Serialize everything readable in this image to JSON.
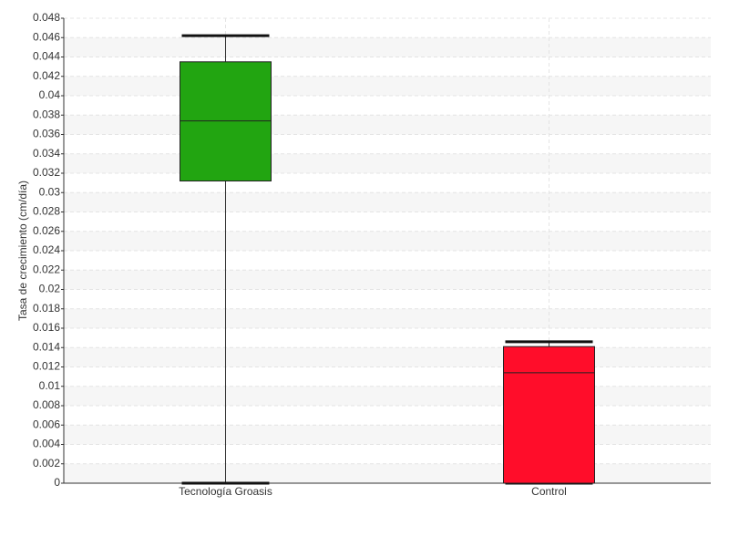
{
  "chart_data": {
    "type": "box",
    "y_label": "Tasa de crecimiento (cm/día)",
    "categories": [
      "Tecnología Groasis",
      "Control"
    ],
    "boxes": [
      {
        "min": 0,
        "q1": 0.0312,
        "median": 0.0374,
        "q3": 0.0435,
        "max": 0.0462,
        "color": "#22a511"
      },
      {
        "min": 0,
        "q1": 0,
        "median": 0.0114,
        "q3": 0.0141,
        "max": 0.0146,
        "color": "#ff0d2a"
      }
    ],
    "ylim": [
      0,
      0.048
    ],
    "yticks": [
      0,
      0.002,
      0.004,
      0.006,
      0.008,
      0.01,
      0.012,
      0.014,
      0.016,
      0.018,
      0.02,
      0.022,
      0.024,
      0.026,
      0.028,
      0.03,
      0.032,
      0.034,
      0.036,
      0.038,
      0.04,
      0.042,
      0.044,
      0.046,
      0.048
    ],
    "grid": true
  }
}
